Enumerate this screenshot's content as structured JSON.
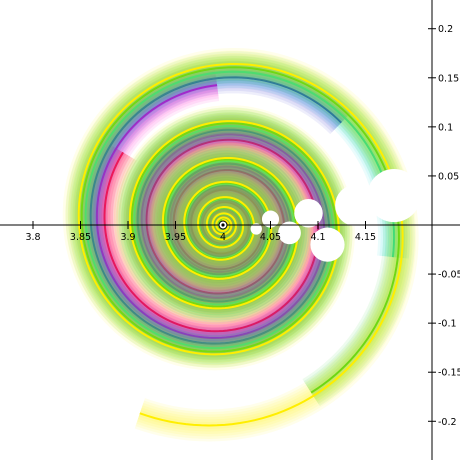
{
  "chart_data": {
    "type": "contour",
    "title": "",
    "xlabel": "",
    "ylabel": "",
    "xlim": [
      3.78,
      4.22
    ],
    "ylim": [
      -0.215,
      0.215
    ],
    "x_ticks": [
      {
        "value": 3.8,
        "label": "3.8"
      },
      {
        "value": 3.85,
        "label": "3.85"
      },
      {
        "value": 3.9,
        "label": "3.9"
      },
      {
        "value": 3.95,
        "label": "3.95"
      },
      {
        "value": 4.0,
        "label": "4"
      },
      {
        "value": 4.05,
        "label": "4.05"
      },
      {
        "value": 4.1,
        "label": "4.1"
      },
      {
        "value": 4.15,
        "label": "4.15"
      }
    ],
    "y_ticks": [
      {
        "value": 0.2,
        "label": "0.2"
      },
      {
        "value": 0.15,
        "label": "0.15"
      },
      {
        "value": 0.1,
        "label": "0.1"
      },
      {
        "value": 0.05,
        "label": "0.05"
      },
      {
        "value": -0.05,
        "label": "-0.05"
      },
      {
        "value": -0.1,
        "label": "-0.1"
      },
      {
        "value": -0.15,
        "label": "-0.15"
      },
      {
        "value": -0.2,
        "label": "-0.2"
      }
    ],
    "center": {
      "x": 4.0,
      "y": 0.0
    },
    "spiral_contours": [
      {
        "color": "#ff2222",
        "start_radius": 0.003,
        "growth_per_turn": 1.55,
        "angle_offset": 0.0
      },
      {
        "color": "#ff00cc",
        "start_radius": 0.0034,
        "growth_per_turn": 1.55,
        "angle_offset": 0.9
      },
      {
        "color": "#2222cc",
        "start_radius": 0.0038,
        "growth_per_turn": 1.55,
        "angle_offset": 1.8
      },
      {
        "color": "#00dddd",
        "start_radius": 0.0042,
        "growth_per_turn": 1.55,
        "angle_offset": 2.7
      },
      {
        "color": "#22cc22",
        "start_radius": 0.0046,
        "growth_per_turn": 1.55,
        "angle_offset": 3.6
      },
      {
        "color": "#ffee00",
        "start_radius": 0.005,
        "growth_per_turn": 1.55,
        "angle_offset": 4.5
      }
    ],
    "holes": [
      {
        "x": 4.18,
        "y": 0.03,
        "r": 0.028
      },
      {
        "x": 4.14,
        "y": 0.02,
        "r": 0.022
      },
      {
        "x": 4.11,
        "y": -0.02,
        "r": 0.018
      },
      {
        "x": 4.09,
        "y": 0.012,
        "r": 0.015
      },
      {
        "x": 4.07,
        "y": -0.008,
        "r": 0.012
      },
      {
        "x": 4.05,
        "y": 0.006,
        "r": 0.009
      },
      {
        "x": 4.035,
        "y": -0.004,
        "r": 0.006
      }
    ],
    "grid": false,
    "axis_style": "crossing-at-origin-y-axis-right"
  }
}
